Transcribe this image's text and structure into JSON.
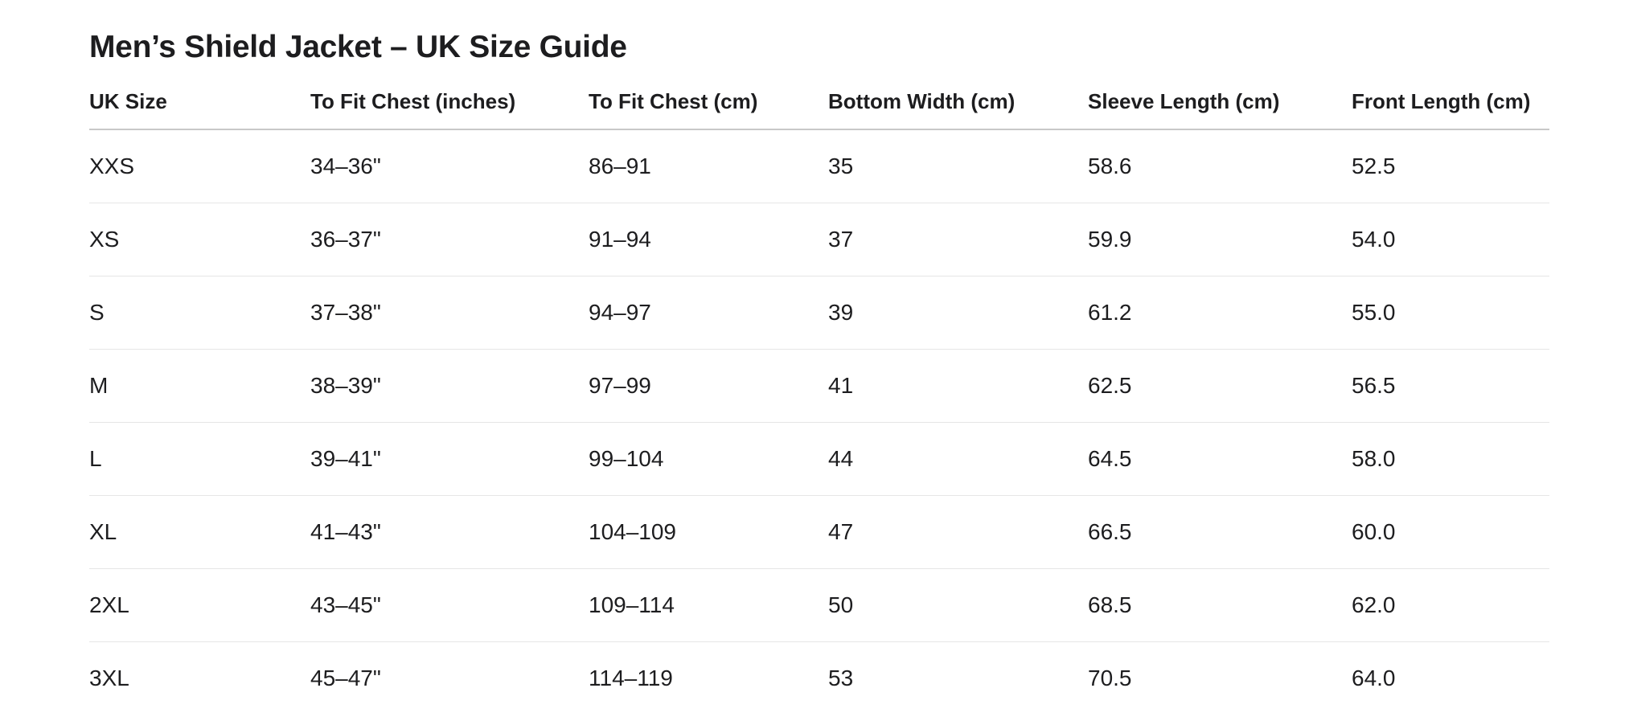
{
  "title": "Men’s Shield Jacket – UK Size Guide",
  "table": {
    "headers": [
      "UK Size",
      "To Fit Chest (inches)",
      "To Fit Chest (cm)",
      "Bottom Width (cm)",
      "Sleeve Length (cm)",
      "Front Length (cm)"
    ],
    "rows": [
      [
        "XXS",
        "34–36\"",
        "86–91",
        "35",
        "58.6",
        "52.5"
      ],
      [
        "XS",
        "36–37\"",
        "91–94",
        "37",
        "59.9",
        "54.0"
      ],
      [
        "S",
        "37–38\"",
        "94–97",
        "39",
        "61.2",
        "55.0"
      ],
      [
        "M",
        "38–39\"",
        "97–99",
        "41",
        "62.5",
        "56.5"
      ],
      [
        "L",
        "39–41\"",
        "99–104",
        "44",
        "64.5",
        "58.0"
      ],
      [
        "XL",
        "41–43\"",
        "104–109",
        "47",
        "66.5",
        "60.0"
      ],
      [
        "2XL",
        "43–45\"",
        "109–114",
        "50",
        "68.5",
        "62.0"
      ],
      [
        "3XL",
        "45–47\"",
        "114–119",
        "53",
        "70.5",
        "64.0"
      ]
    ]
  }
}
